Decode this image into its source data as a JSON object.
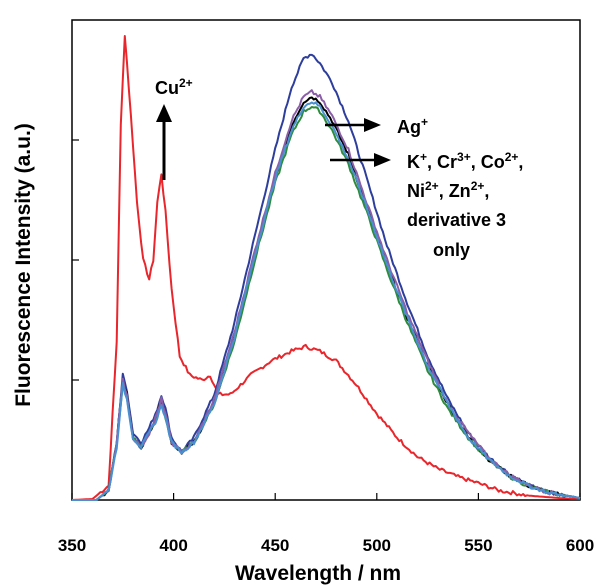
{
  "chart_data": {
    "type": "line",
    "title": "",
    "xlabel": "Wavelength / nm",
    "ylabel": "Fluorescence Intensity (a.u.)",
    "xlim": [
      350,
      600
    ],
    "ylim": [
      0,
      1
    ],
    "x_ticks": [
      "350",
      "400",
      "450",
      "500",
      "550",
      "600"
    ],
    "y_ticks_labeled": false,
    "grid": false,
    "legend": "none",
    "annotations": [
      {
        "id": "cu",
        "text": "Cu2+",
        "base": "Cu",
        "sup": "2+"
      },
      {
        "id": "ag",
        "text": "Ag+",
        "base": "Ag",
        "sup": "+"
      },
      {
        "id": "others",
        "lines": [
          [
            {
              "t": "K"
            },
            {
              "s": "+"
            },
            {
              "t": ", Cr"
            },
            {
              "s": "3+"
            },
            {
              "t": ", Co"
            },
            {
              "s": "2+"
            },
            {
              "t": ","
            }
          ],
          [
            {
              "t": "Ni"
            },
            {
              "s": "2+"
            },
            {
              "t": ", Zn"
            },
            {
              "s": "2+"
            },
            {
              "t": ","
            }
          ],
          [
            {
              "t": "derivative 3"
            }
          ],
          [
            {
              "t": "only"
            }
          ]
        ]
      }
    ],
    "series": [
      {
        "color": "#e8262b",
        "points": [
          [
            350,
            0.0
          ],
          [
            360,
            0.002
          ],
          [
            368,
            0.03
          ],
          [
            372,
            0.33
          ],
          [
            374,
            0.78
          ],
          [
            376,
            0.97
          ],
          [
            379,
            0.8
          ],
          [
            382,
            0.62
          ],
          [
            385,
            0.5
          ],
          [
            388,
            0.46
          ],
          [
            390,
            0.5
          ],
          [
            392,
            0.62
          ],
          [
            394,
            0.68
          ],
          [
            396,
            0.6
          ],
          [
            399,
            0.44
          ],
          [
            403,
            0.3
          ],
          [
            408,
            0.26
          ],
          [
            414,
            0.25
          ],
          [
            418,
            0.26
          ],
          [
            422,
            0.22
          ],
          [
            428,
            0.22
          ],
          [
            438,
            0.26
          ],
          [
            448,
            0.29
          ],
          [
            458,
            0.31
          ],
          [
            465,
            0.32
          ],
          [
            472,
            0.31
          ],
          [
            480,
            0.29
          ],
          [
            490,
            0.24
          ],
          [
            500,
            0.18
          ],
          [
            510,
            0.13
          ],
          [
            520,
            0.09
          ],
          [
            530,
            0.065
          ],
          [
            540,
            0.048
          ],
          [
            550,
            0.035
          ],
          [
            560,
            0.02
          ],
          [
            575,
            0.009
          ],
          [
            590,
            0.004
          ],
          [
            600,
            0.002
          ]
        ]
      },
      {
        "color": "#2d3e9c",
        "points": [
          [
            350,
            0.0
          ],
          [
            362,
            0.0
          ],
          [
            368,
            0.02
          ],
          [
            372,
            0.12
          ],
          [
            375,
            0.26
          ],
          [
            377,
            0.23
          ],
          [
            380,
            0.14
          ],
          [
            384,
            0.12
          ],
          [
            388,
            0.15
          ],
          [
            392,
            0.19
          ],
          [
            394,
            0.22
          ],
          [
            396,
            0.19
          ],
          [
            399,
            0.13
          ],
          [
            404,
            0.1
          ],
          [
            410,
            0.13
          ],
          [
            420,
            0.22
          ],
          [
            430,
            0.37
          ],
          [
            440,
            0.55
          ],
          [
            450,
            0.73
          ],
          [
            458,
            0.86
          ],
          [
            464,
            0.92
          ],
          [
            468,
            0.93
          ],
          [
            472,
            0.91
          ],
          [
            478,
            0.87
          ],
          [
            486,
            0.79
          ],
          [
            495,
            0.67
          ],
          [
            505,
            0.53
          ],
          [
            515,
            0.41
          ],
          [
            525,
            0.3
          ],
          [
            535,
            0.21
          ],
          [
            545,
            0.14
          ],
          [
            555,
            0.09
          ],
          [
            565,
            0.055
          ],
          [
            575,
            0.03
          ],
          [
            585,
            0.015
          ],
          [
            595,
            0.008
          ],
          [
            600,
            0.004
          ]
        ]
      },
      {
        "color": "#000000",
        "points": [
          [
            350,
            0.0
          ],
          [
            362,
            0.0
          ],
          [
            368,
            0.02
          ],
          [
            372,
            0.12
          ],
          [
            375,
            0.25
          ],
          [
            377,
            0.22
          ],
          [
            380,
            0.13
          ],
          [
            384,
            0.11
          ],
          [
            388,
            0.14
          ],
          [
            392,
            0.18
          ],
          [
            394,
            0.21
          ],
          [
            396,
            0.18
          ],
          [
            399,
            0.12
          ],
          [
            404,
            0.1
          ],
          [
            410,
            0.12
          ],
          [
            420,
            0.2
          ],
          [
            430,
            0.34
          ],
          [
            440,
            0.51
          ],
          [
            450,
            0.67
          ],
          [
            458,
            0.78
          ],
          [
            464,
            0.83
          ],
          [
            468,
            0.84
          ],
          [
            472,
            0.83
          ],
          [
            478,
            0.79
          ],
          [
            486,
            0.72
          ],
          [
            495,
            0.61
          ],
          [
            505,
            0.49
          ],
          [
            515,
            0.38
          ],
          [
            525,
            0.28
          ],
          [
            535,
            0.2
          ],
          [
            545,
            0.13
          ],
          [
            555,
            0.085
          ],
          [
            565,
            0.052
          ],
          [
            575,
            0.029
          ],
          [
            585,
            0.015
          ],
          [
            595,
            0.008
          ],
          [
            600,
            0.004
          ]
        ]
      },
      {
        "color": "#2e8b3c",
        "points": [
          [
            350,
            0.0
          ],
          [
            362,
            0.0
          ],
          [
            368,
            0.02
          ],
          [
            372,
            0.12
          ],
          [
            375,
            0.24
          ],
          [
            377,
            0.21
          ],
          [
            380,
            0.13
          ],
          [
            384,
            0.11
          ],
          [
            388,
            0.14
          ],
          [
            392,
            0.17
          ],
          [
            394,
            0.2
          ],
          [
            396,
            0.17
          ],
          [
            399,
            0.12
          ],
          [
            404,
            0.1
          ],
          [
            410,
            0.12
          ],
          [
            420,
            0.2
          ],
          [
            430,
            0.33
          ],
          [
            440,
            0.5
          ],
          [
            450,
            0.66
          ],
          [
            458,
            0.76
          ],
          [
            464,
            0.81
          ],
          [
            468,
            0.82
          ],
          [
            472,
            0.81
          ],
          [
            478,
            0.77
          ],
          [
            486,
            0.7
          ],
          [
            495,
            0.6
          ],
          [
            505,
            0.48
          ],
          [
            515,
            0.37
          ],
          [
            525,
            0.27
          ],
          [
            535,
            0.19
          ],
          [
            545,
            0.13
          ],
          [
            555,
            0.083
          ],
          [
            565,
            0.05
          ],
          [
            575,
            0.028
          ],
          [
            585,
            0.015
          ],
          [
            595,
            0.008
          ],
          [
            600,
            0.004
          ]
        ]
      },
      {
        "color": "#8b5fa8",
        "points": [
          [
            350,
            0.0
          ],
          [
            362,
            0.0
          ],
          [
            368,
            0.02
          ],
          [
            372,
            0.12
          ],
          [
            375,
            0.25
          ],
          [
            377,
            0.22
          ],
          [
            380,
            0.13
          ],
          [
            384,
            0.11
          ],
          [
            388,
            0.14
          ],
          [
            392,
            0.18
          ],
          [
            394,
            0.21
          ],
          [
            396,
            0.18
          ],
          [
            399,
            0.12
          ],
          [
            404,
            0.1
          ],
          [
            410,
            0.12
          ],
          [
            420,
            0.21
          ],
          [
            430,
            0.35
          ],
          [
            440,
            0.52
          ],
          [
            450,
            0.68
          ],
          [
            458,
            0.79
          ],
          [
            464,
            0.84
          ],
          [
            468,
            0.85
          ],
          [
            472,
            0.84
          ],
          [
            478,
            0.8
          ],
          [
            486,
            0.73
          ],
          [
            495,
            0.62
          ],
          [
            505,
            0.5
          ],
          [
            515,
            0.39
          ],
          [
            525,
            0.29
          ],
          [
            535,
            0.2
          ],
          [
            545,
            0.14
          ],
          [
            555,
            0.088
          ],
          [
            565,
            0.053
          ],
          [
            575,
            0.03
          ],
          [
            585,
            0.016
          ],
          [
            595,
            0.008
          ],
          [
            600,
            0.004
          ]
        ]
      },
      {
        "color": "#4a8fd0",
        "points": [
          [
            350,
            0.0
          ],
          [
            362,
            0.0
          ],
          [
            368,
            0.02
          ],
          [
            372,
            0.11
          ],
          [
            375,
            0.24
          ],
          [
            377,
            0.21
          ],
          [
            380,
            0.13
          ],
          [
            384,
            0.11
          ],
          [
            388,
            0.14
          ],
          [
            392,
            0.17
          ],
          [
            394,
            0.2
          ],
          [
            396,
            0.17
          ],
          [
            399,
            0.12
          ],
          [
            404,
            0.1
          ],
          [
            410,
            0.12
          ],
          [
            420,
            0.2
          ],
          [
            430,
            0.34
          ],
          [
            440,
            0.51
          ],
          [
            450,
            0.67
          ],
          [
            458,
            0.77
          ],
          [
            464,
            0.82
          ],
          [
            468,
            0.83
          ],
          [
            472,
            0.82
          ],
          [
            478,
            0.78
          ],
          [
            486,
            0.71
          ],
          [
            495,
            0.61
          ],
          [
            505,
            0.49
          ],
          [
            515,
            0.38
          ],
          [
            525,
            0.28
          ],
          [
            535,
            0.2
          ],
          [
            545,
            0.13
          ],
          [
            555,
            0.085
          ],
          [
            565,
            0.051
          ],
          [
            575,
            0.029
          ],
          [
            585,
            0.015
          ],
          [
            595,
            0.008
          ],
          [
            600,
            0.004
          ]
        ]
      }
    ]
  }
}
